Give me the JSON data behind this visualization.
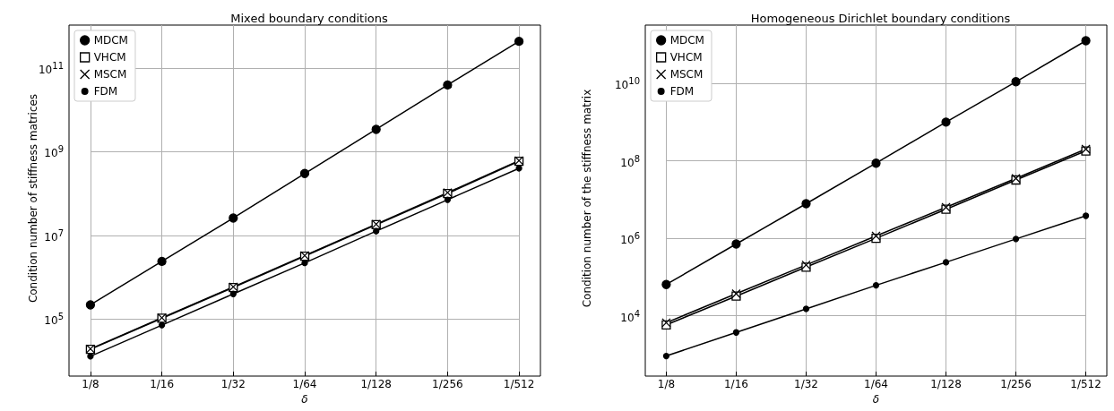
{
  "chart_data": [
    {
      "type": "line",
      "title": "Mixed boundary conditions",
      "xlabel": "δ",
      "ylabel": "Condition number of stiffness matrices",
      "categories": [
        "1/8",
        "1/16",
        "1/32",
        "1/64",
        "1/128",
        "1/256",
        "1/512"
      ],
      "log": "y",
      "grid": true,
      "legend": "top left",
      "line_style": "solid",
      "ylim": [
        5600,
        1050000000000
      ],
      "yticks": [
        {
          "value": 100000,
          "label": "10$^{5}$"
        },
        {
          "value": 10000000,
          "label": "10$^{7}$"
        },
        {
          "value": 1000000000,
          "label": "10$^{9}$"
        },
        {
          "value": 100000000000,
          "label": "10$^{11}$"
        }
      ],
      "series": [
        {
          "name": "MDCM",
          "color": "#000000",
          "marker": "circle",
          "values": [
            220000,
            2400000,
            26000000,
            300000000,
            3400000000,
            39000000000,
            430000000000
          ]
        },
        {
          "name": "VHCM",
          "color": "#000000",
          "marker": "square",
          "values": [
            19000,
            105000,
            570000,
            3200000,
            18000000,
            100000000,
            590000000
          ]
        },
        {
          "name": "MSCM",
          "color": "#000000",
          "marker": "cross",
          "values": [
            19500,
            108000,
            590000,
            3300000,
            18500000,
            105000000,
            610000000
          ]
        },
        {
          "name": "FDM",
          "color": "#000000",
          "marker": "circle",
          "values": [
            13000,
            72000,
            400000,
            2200000,
            12600000,
            71000000,
            400000000
          ]
        }
      ]
    },
    {
      "type": "line",
      "title": "Homogeneous Dirichlet boundary conditions",
      "xlabel": "δ",
      "ylabel": "Condition number of the stiffness matrix",
      "categories": [
        "1/8",
        "1/16",
        "1/32",
        "1/64",
        "1/128",
        "1/256",
        "1/512"
      ],
      "log": "y",
      "grid": true,
      "legend": "top left",
      "line_style": "solid",
      "ylim": [
        360,
        320000000000
      ],
      "yticks": [
        {
          "value": 10000,
          "label": "10$^{4}$"
        },
        {
          "value": 1000000,
          "label": "10$^{6}$"
        },
        {
          "value": 100000000,
          "label": "10$^{8}$"
        },
        {
          "value": 10000000000,
          "label": "10$^{10}$"
        }
      ],
      "series": [
        {
          "name": "MDCM",
          "color": "#000000",
          "marker": "circle",
          "values": [
            64000,
            710000,
            7800000,
            87000000,
            1000000000,
            11000000000,
            126000000000
          ]
        },
        {
          "name": "VHCM",
          "color": "#000000",
          "marker": "square",
          "values": [
            5800,
            32000,
            180000,
            1000000,
            5600000,
            32000000,
            180000000
          ]
        },
        {
          "name": "MSCM",
          "color": "#000000",
          "marker": "cross",
          "values": [
            6600,
            37000,
            205000,
            1150000,
            6300000,
            35000000,
            200000000
          ]
        },
        {
          "name": "FDM",
          "color": "#000000",
          "marker": "circle",
          "values": [
            910,
            3700,
            15000,
            61000,
            240000,
            960000,
            3800000
          ]
        }
      ]
    }
  ]
}
